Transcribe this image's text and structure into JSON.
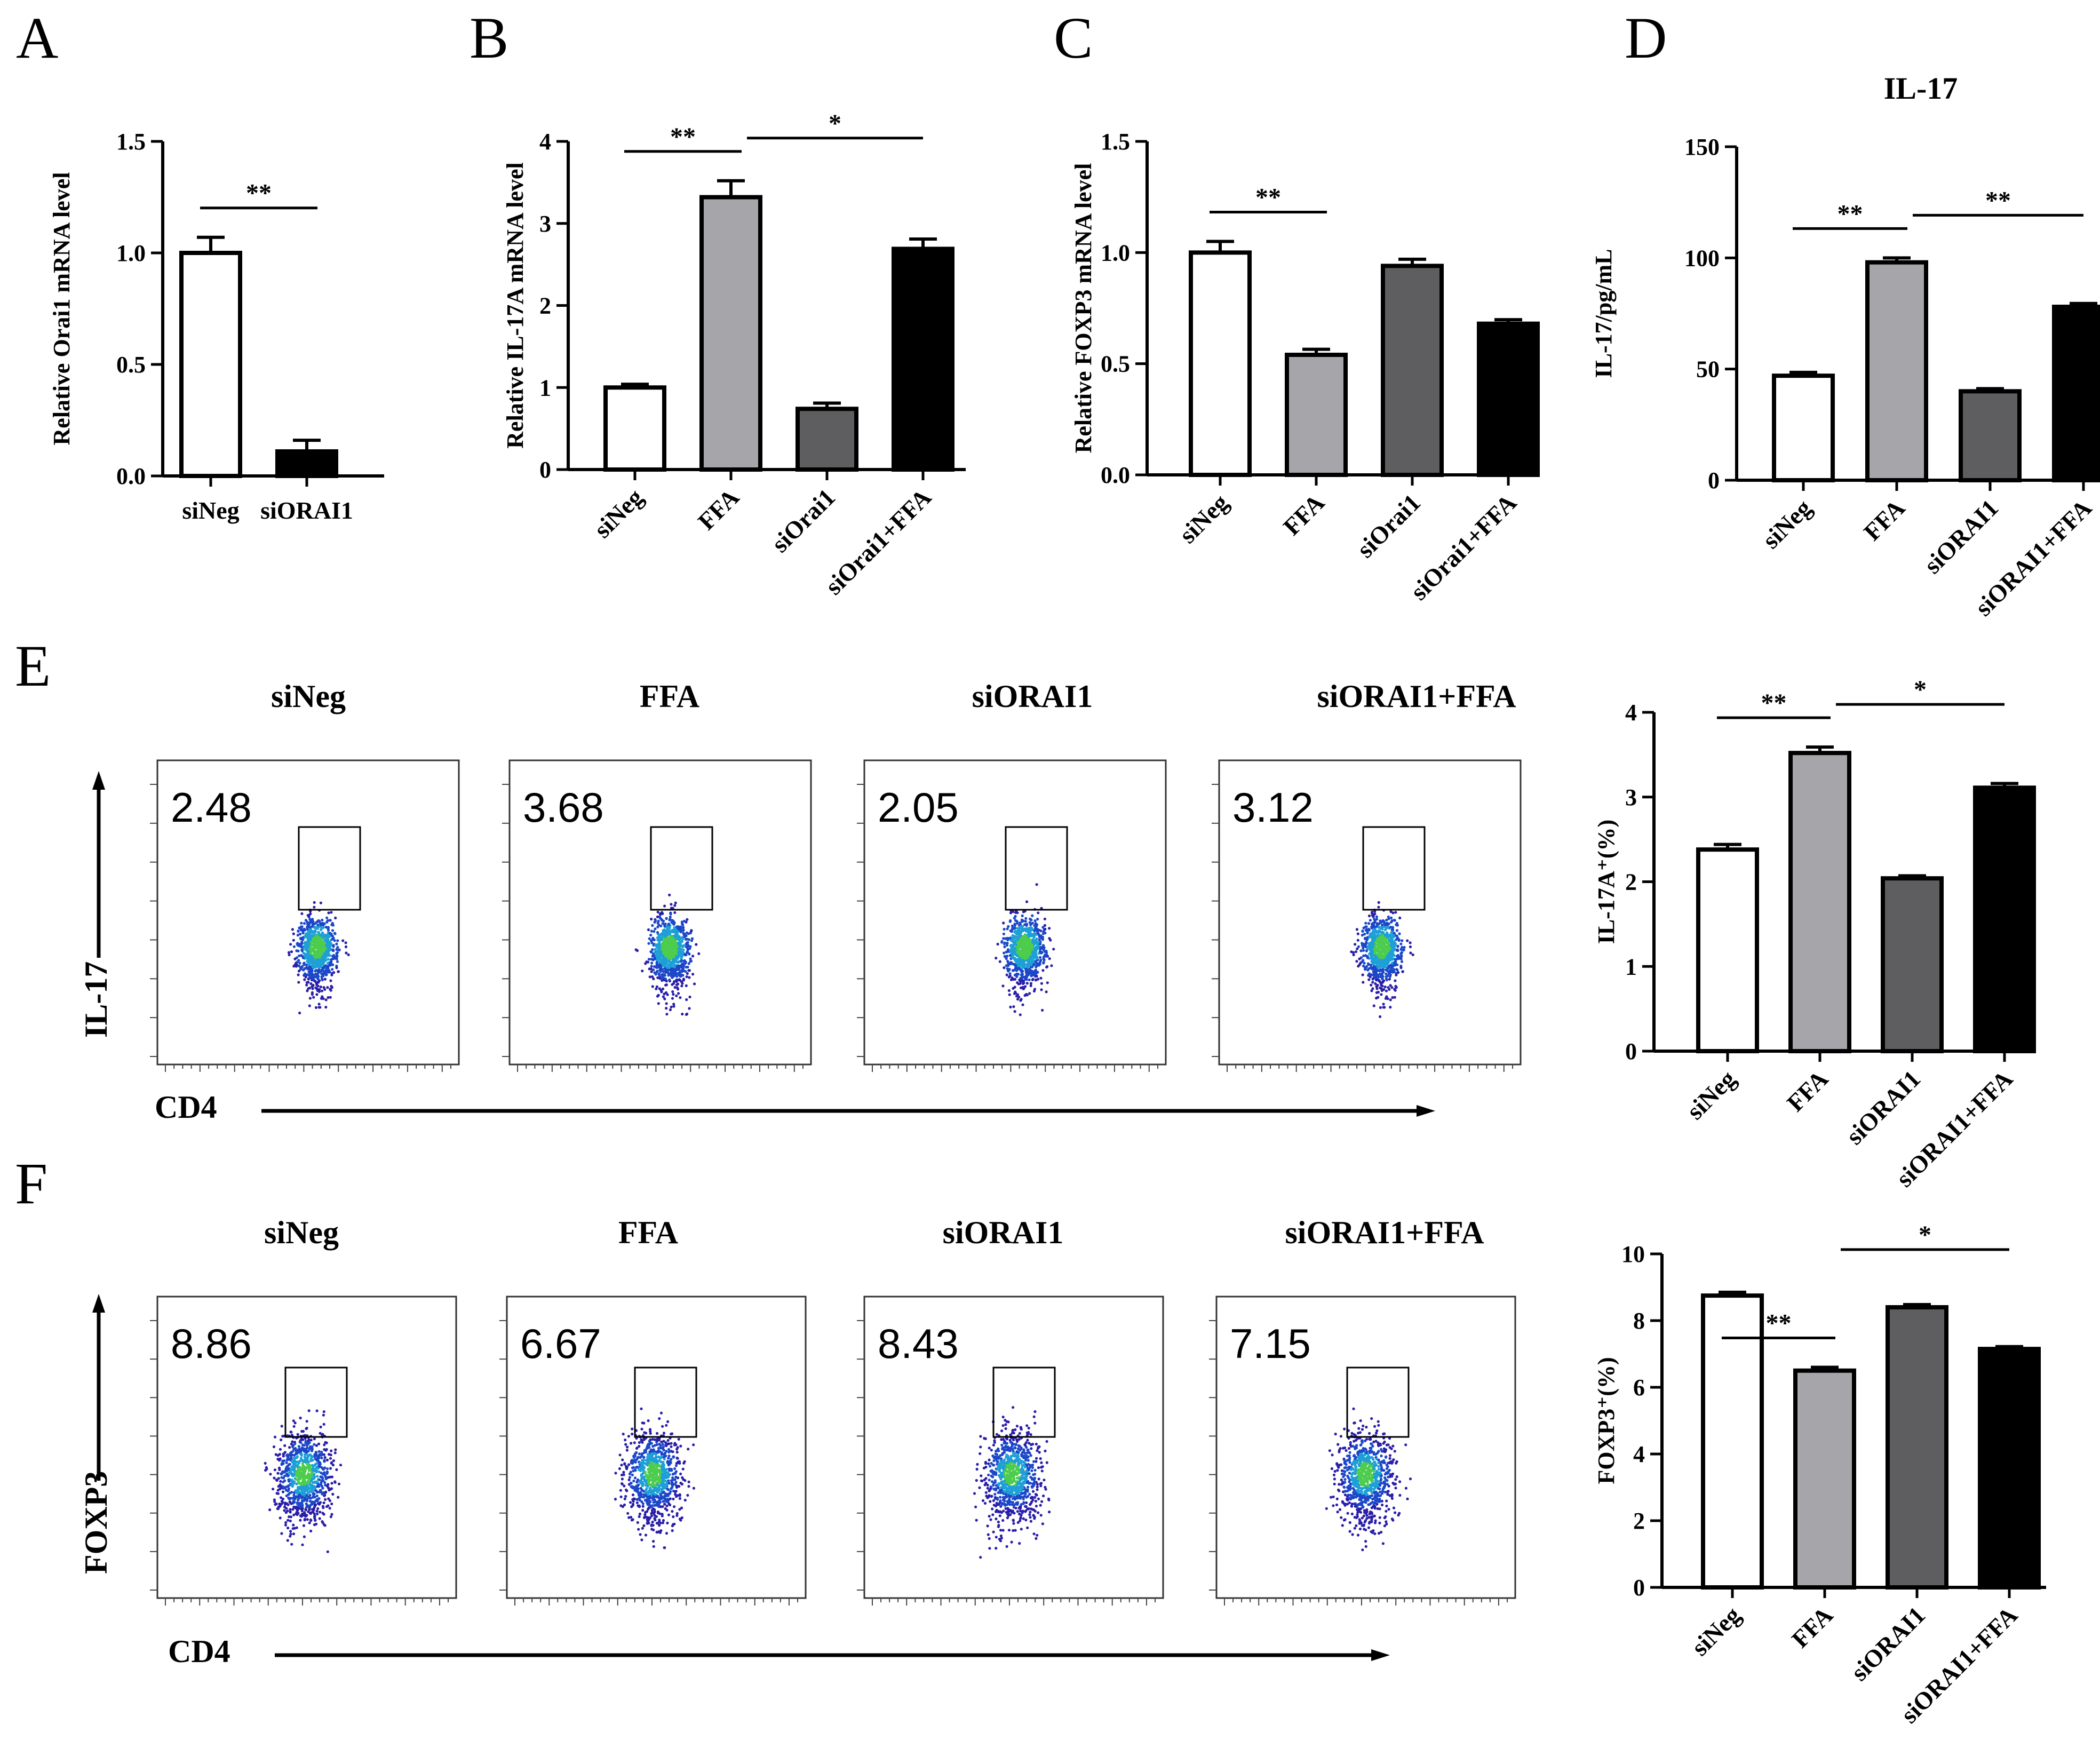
{
  "panel_labels": [
    "A",
    "B",
    "C",
    "D",
    "E",
    "F"
  ],
  "colors": {
    "white": "#ffffff",
    "light_gray": "#a5a5aa",
    "dark_gray": "#5e5e60",
    "black": "#000000"
  },
  "chart_data": [
    {
      "id": "A",
      "type": "bar",
      "title": "",
      "ylabel": "Relative Orai1 mRNA level",
      "ylim": [
        0,
        1.5
      ],
      "yticks": [
        "0.0",
        "0.5",
        "1.0",
        "1.5"
      ],
      "categories": [
        "siNeg",
        "siORAI1"
      ],
      "values": [
        1.0,
        0.11
      ],
      "errors": [
        0.07,
        0.05
      ],
      "colors": [
        "#ffffff",
        "#000000"
      ],
      "significance": [
        {
          "from": 0,
          "to": 1,
          "label": "**"
        }
      ]
    },
    {
      "id": "B",
      "type": "bar",
      "title": "",
      "ylabel": "Relative IL-17A mRNA level",
      "ylim": [
        0,
        4
      ],
      "yticks": [
        "0",
        "1",
        "2",
        "3",
        "4"
      ],
      "categories": [
        "siNeg",
        "FFA",
        "siOrai1",
        "siOrai1+FFA"
      ],
      "values": [
        1.0,
        3.32,
        0.74,
        2.69
      ],
      "errors": [
        0.04,
        0.2,
        0.07,
        0.12
      ],
      "colors": [
        "#ffffff",
        "#a5a5aa",
        "#5e5e60",
        "#000000"
      ],
      "significance": [
        {
          "from": 0,
          "to": 1,
          "label": "**"
        },
        {
          "from": 1,
          "to": 3,
          "label": "*"
        }
      ]
    },
    {
      "id": "C",
      "type": "bar",
      "title": "",
      "ylabel": "Relative FOXP3 mRNA level",
      "ylim": [
        0,
        1.5
      ],
      "yticks": [
        "0.0",
        "0.5",
        "1.0",
        "1.5"
      ],
      "categories": [
        "siNeg",
        "FFA",
        "siOrai1",
        "siOrai1+FFA"
      ],
      "values": [
        1.0,
        0.54,
        0.94,
        0.68
      ],
      "errors": [
        0.05,
        0.025,
        0.03,
        0.018
      ],
      "colors": [
        "#ffffff",
        "#a5a5aa",
        "#5e5e60",
        "#000000"
      ],
      "significance": [
        {
          "from": 0,
          "to": 1,
          "label": "**"
        }
      ]
    },
    {
      "id": "D",
      "type": "bar",
      "title": "IL-17",
      "ylabel": "IL-17/pg/mL",
      "ylim": [
        0,
        150
      ],
      "yticks": [
        "0",
        "50",
        "100",
        "150"
      ],
      "categories": [
        "siNeg",
        "FFA",
        "siORAI1",
        "siORAI1+FFA"
      ],
      "values": [
        47,
        98,
        40,
        78
      ],
      "errors": [
        1.5,
        2.0,
        1.2,
        1.5
      ],
      "colors": [
        "#ffffff",
        "#a5a5aa",
        "#5e5e60",
        "#000000"
      ],
      "significance": [
        {
          "from": 0,
          "to": 1,
          "label": "**"
        },
        {
          "from": 1,
          "to": 3,
          "label": "**"
        }
      ]
    },
    {
      "id": "E",
      "type": "bar",
      "title": "",
      "ylabel": "IL-17A⁺(%)",
      "ylim": [
        0,
        4
      ],
      "yticks": [
        "0",
        "1",
        "2",
        "3",
        "4"
      ],
      "categories": [
        "siNeg",
        "FFA",
        "siORAI1",
        "siORAI1+FFA"
      ],
      "values": [
        2.38,
        3.52,
        2.04,
        3.11
      ],
      "errors": [
        0.06,
        0.07,
        0.03,
        0.05
      ],
      "colors": [
        "#ffffff",
        "#a5a5aa",
        "#5e5e60",
        "#000000"
      ],
      "significance": [
        {
          "from": 0,
          "to": 1,
          "label": "**"
        },
        {
          "from": 1,
          "to": 3,
          "label": "*"
        }
      ]
    },
    {
      "id": "F",
      "type": "bar",
      "title": "",
      "ylabel": "FOXP3⁺(%)",
      "ylim": [
        0,
        10
      ],
      "yticks": [
        "0",
        "2",
        "4",
        "6",
        "8",
        "10"
      ],
      "categories": [
        "siNeg",
        "FFA",
        "siORAI1",
        "siORAI1+FFA"
      ],
      "values": [
        8.75,
        6.5,
        8.4,
        7.15
      ],
      "errors": [
        0.1,
        0.1,
        0.08,
        0.07
      ],
      "colors": [
        "#ffffff",
        "#a5a5aa",
        "#5e5e60",
        "#000000"
      ],
      "significance": [
        {
          "from": 0,
          "to": 1,
          "label": "**"
        },
        {
          "from": 1,
          "to": 3,
          "label": "*"
        }
      ]
    }
  ],
  "flow": {
    "E": {
      "y_axis": "IL-17",
      "x_axis": "CD4",
      "panels": [
        {
          "condition": "siNeg",
          "percent": "2.48"
        },
        {
          "condition": "FFA",
          "percent": "3.68"
        },
        {
          "condition": "siORAI1",
          "percent": "2.05"
        },
        {
          "condition": "siORAI1+FFA",
          "percent": "3.12"
        }
      ]
    },
    "F": {
      "y_axis": "FOXP3",
      "x_axis": "CD4",
      "panels": [
        {
          "condition": "siNeg",
          "percent": "8.86"
        },
        {
          "condition": "FFA",
          "percent": "6.67"
        },
        {
          "condition": "siORAI1",
          "percent": "8.43"
        },
        {
          "condition": "siORAI1+FFA",
          "percent": "7.15"
        }
      ]
    }
  }
}
